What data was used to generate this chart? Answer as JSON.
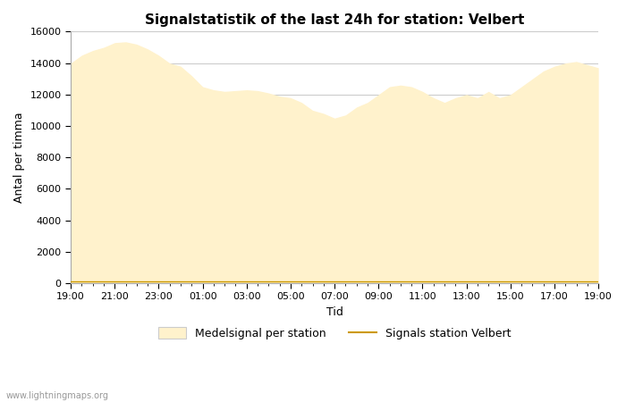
{
  "title": "Signalstatistik of the last 24h for station: Velbert",
  "xlabel": "Tid",
  "ylabel": "Antal per timma",
  "ylim": [
    0,
    16000
  ],
  "yticks": [
    0,
    2000,
    4000,
    6000,
    8000,
    10000,
    12000,
    14000,
    16000
  ],
  "xtick_labels": [
    "19:00",
    "21:00",
    "23:00",
    "01:00",
    "03:00",
    "05:00",
    "07:00",
    "09:00",
    "11:00",
    "13:00",
    "15:00",
    "17:00",
    "19:00"
  ],
  "fill_color": "#FFF2CC",
  "line_color": "#CC9900",
  "background_color": "#FFFFFF",
  "grid_color": "#CCCCCC",
  "watermark": "www.lightningmaps.org",
  "legend_fill_label": "Medelsignal per station",
  "legend_line_label": "Signals station Velbert",
  "x_values": [
    0,
    1,
    2,
    3,
    4,
    5,
    6,
    7,
    8,
    9,
    10,
    11,
    12,
    13,
    14,
    15,
    16,
    17,
    18,
    19,
    20,
    21,
    22,
    23,
    24,
    25,
    26,
    27,
    28,
    29,
    30,
    31,
    32,
    33,
    34,
    35,
    36,
    37,
    38,
    39,
    40,
    41,
    42,
    43,
    44,
    45,
    46,
    47,
    48
  ],
  "fill_values": [
    14000,
    14500,
    14800,
    15000,
    15300,
    15350,
    15200,
    14900,
    14500,
    14000,
    13800,
    13200,
    12500,
    12300,
    12200,
    12250,
    12300,
    12250,
    12100,
    11900,
    11800,
    11500,
    11000,
    10800,
    10500,
    10700,
    11200,
    11500,
    12000,
    12500,
    12600,
    12500,
    12200,
    11800,
    11500,
    11800,
    12000,
    11800,
    12200,
    11800,
    12000,
    12500,
    13000,
    13500,
    13800,
    14000,
    14100,
    13900,
    13700
  ],
  "signal_values": [
    100,
    100,
    100,
    100,
    100,
    100,
    100,
    100,
    100,
    100,
    100,
    100,
    100,
    100,
    100,
    100,
    100,
    100,
    100,
    100,
    100,
    100,
    100,
    100,
    100,
    100,
    100,
    100,
    100,
    100,
    100,
    100,
    100,
    100,
    100,
    100,
    100,
    100,
    100,
    100,
    100,
    100,
    100,
    100,
    100,
    100,
    100,
    100,
    100
  ],
  "title_fontsize": 11,
  "axis_label_fontsize": 9,
  "tick_fontsize": 8
}
